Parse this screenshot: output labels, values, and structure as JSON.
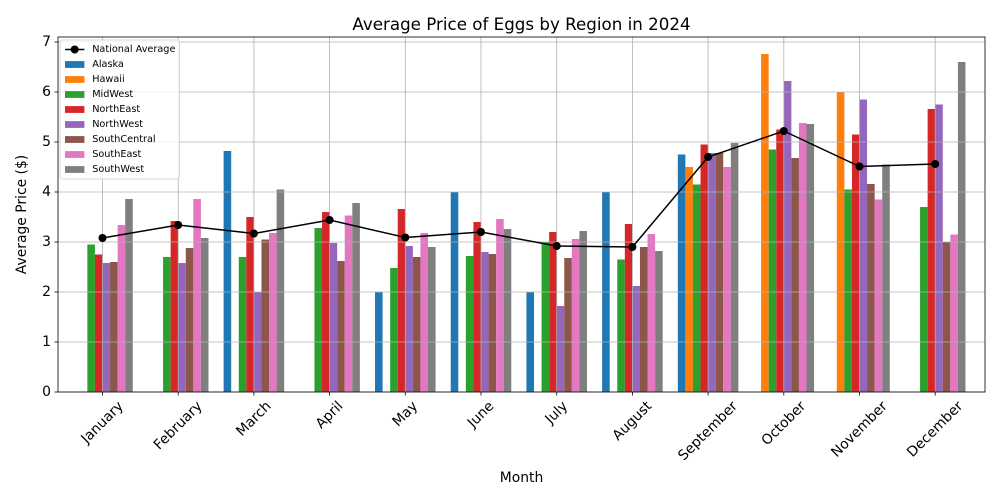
{
  "chart_data": {
    "type": "bar",
    "title": "Average Price of Eggs by Region in 2024",
    "xlabel": "Month",
    "ylabel": "Average Price ($)",
    "categories": [
      "January",
      "February",
      "March",
      "April",
      "May",
      "June",
      "July",
      "August",
      "September",
      "October",
      "November",
      "December"
    ],
    "ylim": [
      0,
      7.1
    ],
    "yticks": [
      0,
      1,
      2,
      3,
      4,
      5,
      6,
      7
    ],
    "grid": true,
    "legend_position": "upper-left",
    "series": [
      {
        "name": "National Average",
        "type": "line",
        "marker": "circle",
        "color": "#000000",
        "values": [
          3.08,
          3.34,
          3.17,
          3.44,
          3.09,
          3.2,
          2.92,
          2.9,
          4.7,
          5.22,
          4.51,
          4.56
        ]
      },
      {
        "name": "Alaska",
        "type": "bar",
        "color": "#1f77b4",
        "values": [
          null,
          null,
          4.82,
          null,
          2.0,
          4.0,
          2.0,
          4.0,
          4.75,
          null,
          null,
          null
        ]
      },
      {
        "name": "Hawaii",
        "type": "bar",
        "color": "#ff7f0e",
        "values": [
          null,
          null,
          null,
          null,
          null,
          null,
          null,
          null,
          4.5,
          6.76,
          6.0,
          null
        ]
      },
      {
        "name": "MidWest",
        "type": "bar",
        "color": "#2ca02c",
        "values": [
          2.95,
          2.7,
          2.7,
          3.28,
          2.48,
          2.72,
          3.0,
          2.65,
          4.15,
          4.85,
          4.05,
          3.7
        ]
      },
      {
        "name": "NorthEast",
        "type": "bar",
        "color": "#d62728",
        "values": [
          2.75,
          3.42,
          3.5,
          3.6,
          3.66,
          3.4,
          3.2,
          3.36,
          4.95,
          5.25,
          5.15,
          5.66
        ]
      },
      {
        "name": "NorthWest",
        "type": "bar",
        "color": "#9467bd",
        "values": [
          2.58,
          2.58,
          2.0,
          2.98,
          2.92,
          2.8,
          1.72,
          2.12,
          4.78,
          6.22,
          5.85,
          5.75
        ]
      },
      {
        "name": "SouthCentral",
        "type": "bar",
        "color": "#8c564b",
        "values": [
          2.6,
          2.88,
          3.05,
          2.62,
          2.7,
          2.76,
          2.68,
          2.9,
          4.78,
          4.68,
          4.16,
          3.0
        ]
      },
      {
        "name": "SouthEast",
        "type": "bar",
        "color": "#e377c2",
        "values": [
          3.34,
          3.86,
          3.18,
          3.53,
          3.18,
          3.46,
          3.06,
          3.16,
          4.5,
          5.38,
          3.85,
          3.15
        ]
      },
      {
        "name": "SouthWest",
        "type": "bar",
        "color": "#7f7f7f",
        "values": [
          3.86,
          3.08,
          4.05,
          3.78,
          2.9,
          3.26,
          3.22,
          2.82,
          4.98,
          5.36,
          4.55,
          6.6
        ]
      }
    ]
  }
}
